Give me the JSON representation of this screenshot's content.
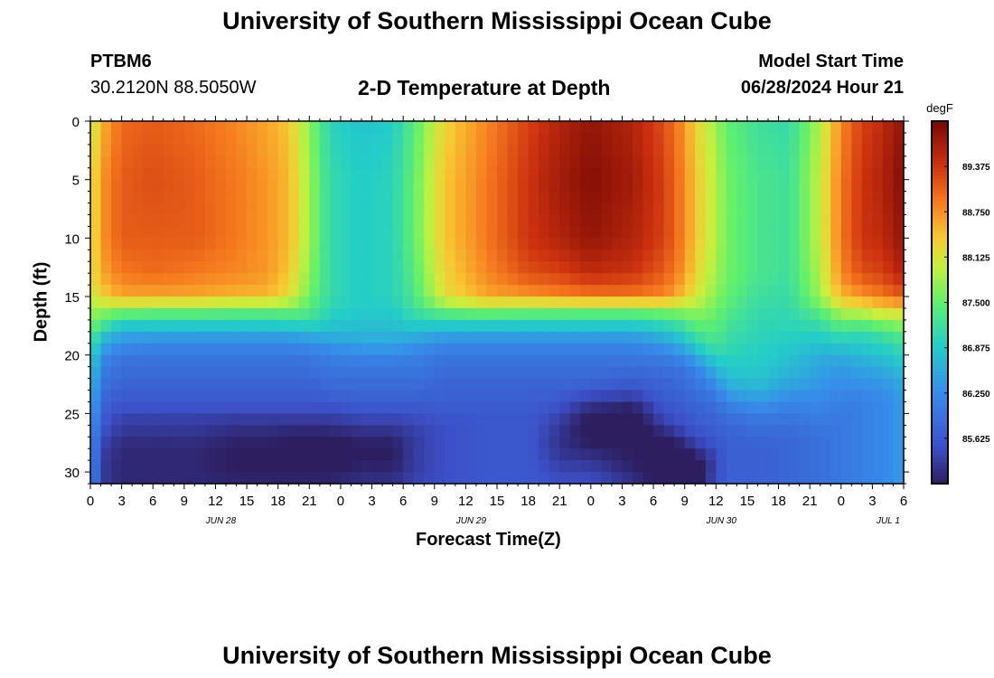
{
  "header": {
    "title": "University of Southern Mississippi Ocean Cube",
    "station_id": "PTBM6",
    "station_coords": "30.2120N  88.5050W",
    "plot_title": "2-D Temperature at Depth",
    "model_start_label": "Model Start Time",
    "model_start_value": "06/28/2024 Hour 21"
  },
  "footer": {
    "title": "University of Southern Mississippi Ocean Cube"
  },
  "chart_data": {
    "type": "heatmap",
    "title": "2-D Temperature at Depth",
    "xlabel": "Forecast Time(Z)",
    "ylabel": "Depth (ft)",
    "x_tick_labels": [
      "0",
      "3",
      "6",
      "9",
      "12",
      "15",
      "18",
      "21",
      "0",
      "3",
      "6",
      "9",
      "12",
      "15",
      "18",
      "21",
      "0",
      "3",
      "6",
      "9",
      "12",
      "15",
      "18",
      "21",
      "0",
      "3",
      "6"
    ],
    "x_date_labels": [
      {
        "label": "JUN 28",
        "hour_index": 12
      },
      {
        "label": "JUN 29",
        "hour_index": 36
      },
      {
        "label": "JUN 30",
        "hour_index": 60
      },
      {
        "label": "JUL 1",
        "hour_index": 76
      }
    ],
    "x_range_hours": [
      0,
      78
    ],
    "y_range_ft": [
      0,
      31
    ],
    "y_ticks": [
      0,
      5,
      10,
      15,
      20,
      25,
      30
    ],
    "y_tick_labels": [
      "0",
      "5",
      "10",
      "15",
      "20",
      "25",
      "30"
    ],
    "colorbar": {
      "units": "degF",
      "range": [
        85.0,
        90.0
      ],
      "tick_values": [
        89.375,
        88.75,
        88.125,
        87.5,
        86.875,
        86.25,
        85.625
      ],
      "tick_labels": [
        "89.375",
        "88.750",
        "88.125",
        "87.500",
        "86.875",
        "86.250",
        "85.625"
      ]
    },
    "columns_hours": [
      0,
      1,
      3,
      6,
      10,
      14,
      17,
      19,
      21,
      23,
      26,
      29,
      31,
      34,
      38,
      42,
      45,
      48,
      52,
      55,
      57,
      58,
      60,
      61,
      64,
      67,
      70,
      72,
      74,
      76,
      77,
      78
    ],
    "depth_levels_ft": [
      0,
      5,
      10,
      13,
      15,
      16,
      17,
      18,
      19,
      20,
      21,
      22,
      23,
      24,
      25,
      26,
      27,
      28,
      29,
      30,
      31
    ],
    "values_degF": [
      [
        87.9,
        88.1,
        88.1,
        88.1,
        88.0,
        87.8,
        87.7,
        87.5,
        87.3,
        87.1,
        87.0,
        86.9,
        86.8,
        86.7,
        86.6,
        86.5,
        86.4,
        86.4,
        86.4,
        86.4,
        86.4
      ],
      [
        88.5,
        88.7,
        88.7,
        88.6,
        88.3,
        87.8,
        87.5,
        87.0,
        86.6,
        86.3,
        86.1,
        86.0,
        85.9,
        85.8,
        85.7,
        85.6,
        85.5,
        85.4,
        85.3,
        85.3,
        85.3
      ],
      [
        89.0,
        89.1,
        89.1,
        88.9,
        88.6,
        87.8,
        87.1,
        86.6,
        86.3,
        86.0,
        85.9,
        85.8,
        85.7,
        85.6,
        85.4,
        85.3,
        85.2,
        85.1,
        85.1,
        85.1,
        85.1
      ],
      [
        89.1,
        89.2,
        89.1,
        89.0,
        88.6,
        87.7,
        87.1,
        86.6,
        86.2,
        86.0,
        85.9,
        85.8,
        85.7,
        85.6,
        85.4,
        85.3,
        85.2,
        85.1,
        85.1,
        85.1,
        85.1
      ],
      [
        89.0,
        89.1,
        89.1,
        88.9,
        88.6,
        87.7,
        87.1,
        86.6,
        86.2,
        86.0,
        85.9,
        85.8,
        85.7,
        85.6,
        85.4,
        85.3,
        85.2,
        85.1,
        85.1,
        85.1,
        85.1
      ],
      [
        88.8,
        88.9,
        88.9,
        88.8,
        88.5,
        87.6,
        87.1,
        86.6,
        86.2,
        86.0,
        85.9,
        85.8,
        85.7,
        85.6,
        85.4,
        85.2,
        85.1,
        85.0,
        85.0,
        85.0,
        85.1
      ],
      [
        88.6,
        88.7,
        88.7,
        88.7,
        88.5,
        87.6,
        87.1,
        86.6,
        86.2,
        86.0,
        85.9,
        85.8,
        85.7,
        85.6,
        85.4,
        85.2,
        85.1,
        85.0,
        85.0,
        85.0,
        85.1
      ],
      [
        88.4,
        88.5,
        88.5,
        88.4,
        88.2,
        87.6,
        87.2,
        86.6,
        86.2,
        86.0,
        85.9,
        85.8,
        85.7,
        85.6,
        85.4,
        85.2,
        85.0,
        85.0,
        84.9,
        85.0,
        85.1
      ],
      [
        87.7,
        87.8,
        87.8,
        87.7,
        87.6,
        87.4,
        87.2,
        86.7,
        86.3,
        86.0,
        85.9,
        85.8,
        85.7,
        85.6,
        85.4,
        85.2,
        85.0,
        84.9,
        84.9,
        85.0,
        85.1
      ],
      [
        87.0,
        87.1,
        87.1,
        87.1,
        87.1,
        87.0,
        86.9,
        86.7,
        86.4,
        86.1,
        86.0,
        85.9,
        85.8,
        85.6,
        85.4,
        85.2,
        85.0,
        84.9,
        84.9,
        85.0,
        85.1
      ],
      [
        86.8,
        86.9,
        86.9,
        86.9,
        86.9,
        86.9,
        86.8,
        86.7,
        86.5,
        86.2,
        86.0,
        85.9,
        85.8,
        85.7,
        85.5,
        85.3,
        85.1,
        85.0,
        85.0,
        85.1,
        85.2
      ],
      [
        86.9,
        87.0,
        87.0,
        87.0,
        87.0,
        86.9,
        86.8,
        86.7,
        86.5,
        86.2,
        86.0,
        85.9,
        85.8,
        85.7,
        85.5,
        85.3,
        85.1,
        85.0,
        85.0,
        85.1,
        85.2
      ],
      [
        87.4,
        87.5,
        87.5,
        87.4,
        87.3,
        87.2,
        87.0,
        86.7,
        86.4,
        86.1,
        86.0,
        85.9,
        85.8,
        85.7,
        85.5,
        85.4,
        85.3,
        85.3,
        85.3,
        85.3,
        85.4
      ],
      [
        88.3,
        88.4,
        88.4,
        88.3,
        88.2,
        87.6,
        87.1,
        86.6,
        86.2,
        86.0,
        85.9,
        85.8,
        85.7,
        85.7,
        85.6,
        85.5,
        85.5,
        85.5,
        85.5,
        85.5,
        85.5
      ],
      [
        88.8,
        88.9,
        88.9,
        88.8,
        88.6,
        87.8,
        87.1,
        86.6,
        86.2,
        86.0,
        85.9,
        85.8,
        85.7,
        85.7,
        85.6,
        85.6,
        85.6,
        85.6,
        85.6,
        85.6,
        85.6
      ],
      [
        89.3,
        89.4,
        89.4,
        89.2,
        88.7,
        87.7,
        87.1,
        86.6,
        86.2,
        86.0,
        85.9,
        85.8,
        85.7,
        85.7,
        85.6,
        85.6,
        85.6,
        85.6,
        85.6,
        85.6,
        85.6
      ],
      [
        89.6,
        89.7,
        89.6,
        89.3,
        88.8,
        87.7,
        87.1,
        86.6,
        86.2,
        86.0,
        85.9,
        85.8,
        85.7,
        85.6,
        85.4,
        85.3,
        85.2,
        85.2,
        85.3,
        85.4,
        85.5
      ],
      [
        89.8,
        89.9,
        89.8,
        89.5,
        88.9,
        87.7,
        87.1,
        86.6,
        86.2,
        86.0,
        85.9,
        85.8,
        85.6,
        85.3,
        85.0,
        84.9,
        84.9,
        85.1,
        85.2,
        85.4,
        85.5
      ],
      [
        89.6,
        89.7,
        89.6,
        89.4,
        88.9,
        87.7,
        87.1,
        86.6,
        86.2,
        86.0,
        85.9,
        85.7,
        85.5,
        85.2,
        84.9,
        84.8,
        84.9,
        85.0,
        85.0,
        85.1,
        85.2
      ],
      [
        89.2,
        89.3,
        89.3,
        89.1,
        88.8,
        87.8,
        87.2,
        86.8,
        86.4,
        86.1,
        85.9,
        85.8,
        85.7,
        85.6,
        85.5,
        85.3,
        85.0,
        84.8,
        84.8,
        84.8,
        85.0
      ],
      [
        88.7,
        88.8,
        88.8,
        88.7,
        88.4,
        87.8,
        87.4,
        87.0,
        86.7,
        86.3,
        86.0,
        85.9,
        85.8,
        85.7,
        85.6,
        85.5,
        85.3,
        85.0,
        84.8,
        84.7,
        84.9
      ],
      [
        88.3,
        88.4,
        88.4,
        88.3,
        88.1,
        87.8,
        87.6,
        87.3,
        87.0,
        86.6,
        86.2,
        86.0,
        85.9,
        85.8,
        85.7,
        85.6,
        85.5,
        85.2,
        84.9,
        84.8,
        84.9
      ],
      [
        87.8,
        87.9,
        87.9,
        87.8,
        87.7,
        87.6,
        87.5,
        87.4,
        87.3,
        87.0,
        86.7,
        86.4,
        86.1,
        85.9,
        85.8,
        85.7,
        85.6,
        85.5,
        85.4,
        85.4,
        85.5
      ],
      [
        87.5,
        87.6,
        87.6,
        87.6,
        87.5,
        87.4,
        87.3,
        87.2,
        87.1,
        87.0,
        86.9,
        86.7,
        86.5,
        86.2,
        85.9,
        85.8,
        85.7,
        85.7,
        85.7,
        85.7,
        85.7
      ],
      [
        87.2,
        87.3,
        87.3,
        87.3,
        87.2,
        87.1,
        87.1,
        87.0,
        87.0,
        86.9,
        86.9,
        86.8,
        86.6,
        86.4,
        86.1,
        85.9,
        85.8,
        85.7,
        85.7,
        85.7,
        85.7
      ],
      [
        87.1,
        87.2,
        87.2,
        87.2,
        87.1,
        87.1,
        87.0,
        87.0,
        86.9,
        86.8,
        86.7,
        86.6,
        86.4,
        86.2,
        86.0,
        85.9,
        85.8,
        85.8,
        85.8,
        85.8,
        85.8
      ],
      [
        87.9,
        88.0,
        88.0,
        87.9,
        87.8,
        87.5,
        87.2,
        87.0,
        86.8,
        86.6,
        86.5,
        86.4,
        86.3,
        86.2,
        86.1,
        86.0,
        85.9,
        85.9,
        85.9,
        85.9,
        85.9
      ],
      [
        88.8,
        88.9,
        88.9,
        88.8,
        88.5,
        88.0,
        87.6,
        87.2,
        86.9,
        86.6,
        86.4,
        86.3,
        86.2,
        86.1,
        86.0,
        86.0,
        86.0,
        86.0,
        86.0,
        86.0,
        86.0
      ],
      [
        89.3,
        89.4,
        89.4,
        89.2,
        88.7,
        88.1,
        87.6,
        87.1,
        86.9,
        86.7,
        86.5,
        86.4,
        86.2,
        86.1,
        86.1,
        86.1,
        86.1,
        86.1,
        86.1,
        86.1,
        86.1
      ],
      [
        89.5,
        89.6,
        89.5,
        89.3,
        88.9,
        88.3,
        87.8,
        87.3,
        87.0,
        86.8,
        86.6,
        86.4,
        86.3,
        86.2,
        86.2,
        86.2,
        86.2,
        86.2,
        86.2,
        86.2,
        86.2
      ],
      [
        89.7,
        89.8,
        89.7,
        89.5,
        89.0,
        88.3,
        87.8,
        87.4,
        87.1,
        86.9,
        86.7,
        86.5,
        86.4,
        86.3,
        86.3,
        86.3,
        86.3,
        86.3,
        86.3,
        86.3,
        86.3
      ],
      [
        89.8,
        89.9,
        89.8,
        89.6,
        89.1,
        88.4,
        87.9,
        87.5,
        87.2,
        87.0,
        86.8,
        86.6,
        86.5,
        86.4,
        86.4,
        86.4,
        86.4,
        86.4,
        86.4,
        86.4,
        86.4
      ]
    ]
  }
}
